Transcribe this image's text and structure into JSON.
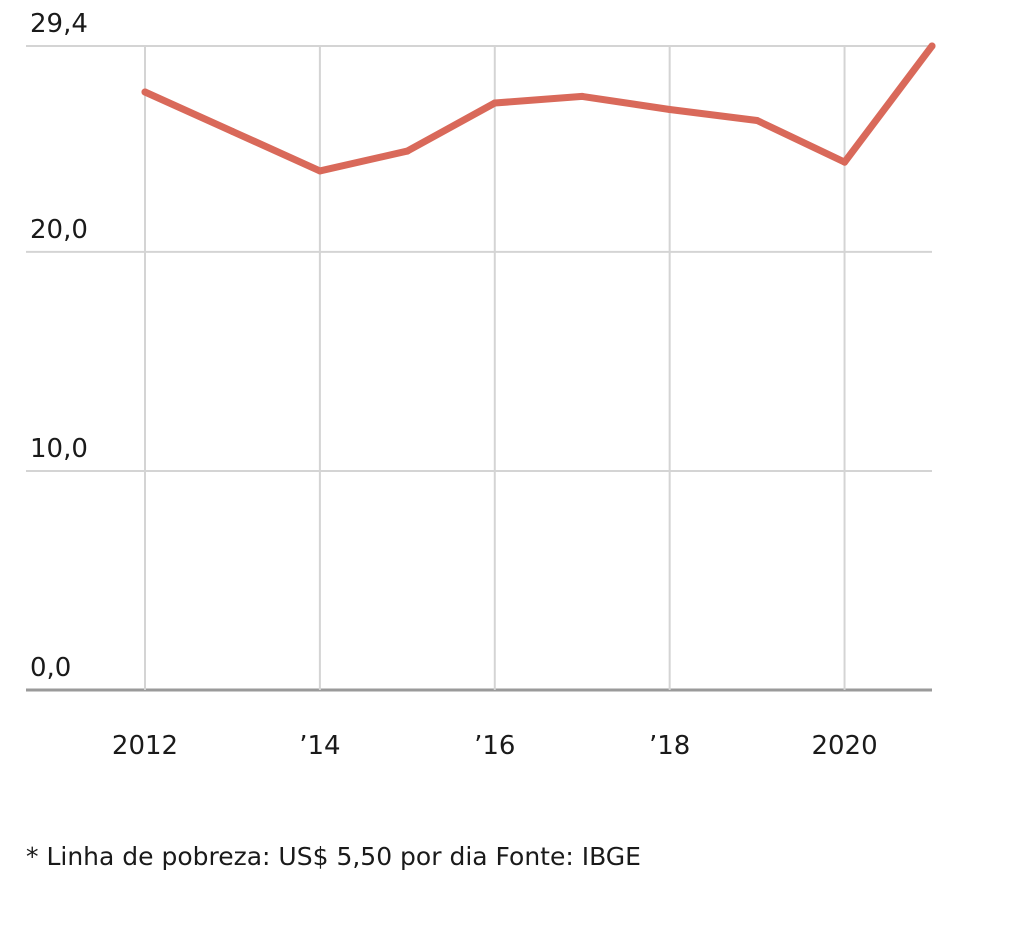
{
  "chart_data": {
    "type": "line",
    "title": "",
    "xlabel": "",
    "ylabel": "",
    "x": [
      2012,
      2013,
      2014,
      2015,
      2016,
      2017,
      2018,
      2019,
      2020,
      2021
    ],
    "series": [
      {
        "values": [
          27.3,
          25.5,
          23.7,
          24.6,
          26.8,
          27.1,
          26.5,
          26.0,
          24.1,
          29.4
        ]
      }
    ],
    "x_ticks": [
      {
        "value": 2012,
        "label": "2012"
      },
      {
        "value": 2014,
        "label": "’14"
      },
      {
        "value": 2016,
        "label": "’16"
      },
      {
        "value": 2018,
        "label": "’18"
      },
      {
        "value": 2020,
        "label": "2020"
      }
    ],
    "y_ticks": [
      {
        "value": 0,
        "label": "0,0"
      },
      {
        "value": 10,
        "label": "10,0"
      },
      {
        "value": 20,
        "label": "20,0"
      },
      {
        "value": 29.4,
        "label": "29,4"
      }
    ],
    "xlim": [
      2012,
      2021
    ],
    "ylim": [
      0,
      29.4
    ],
    "grid": true,
    "line_color": "#d9695a"
  },
  "footnote": "* Linha de pobreza: US$ 5,50 por dia Fonte: IBGE"
}
